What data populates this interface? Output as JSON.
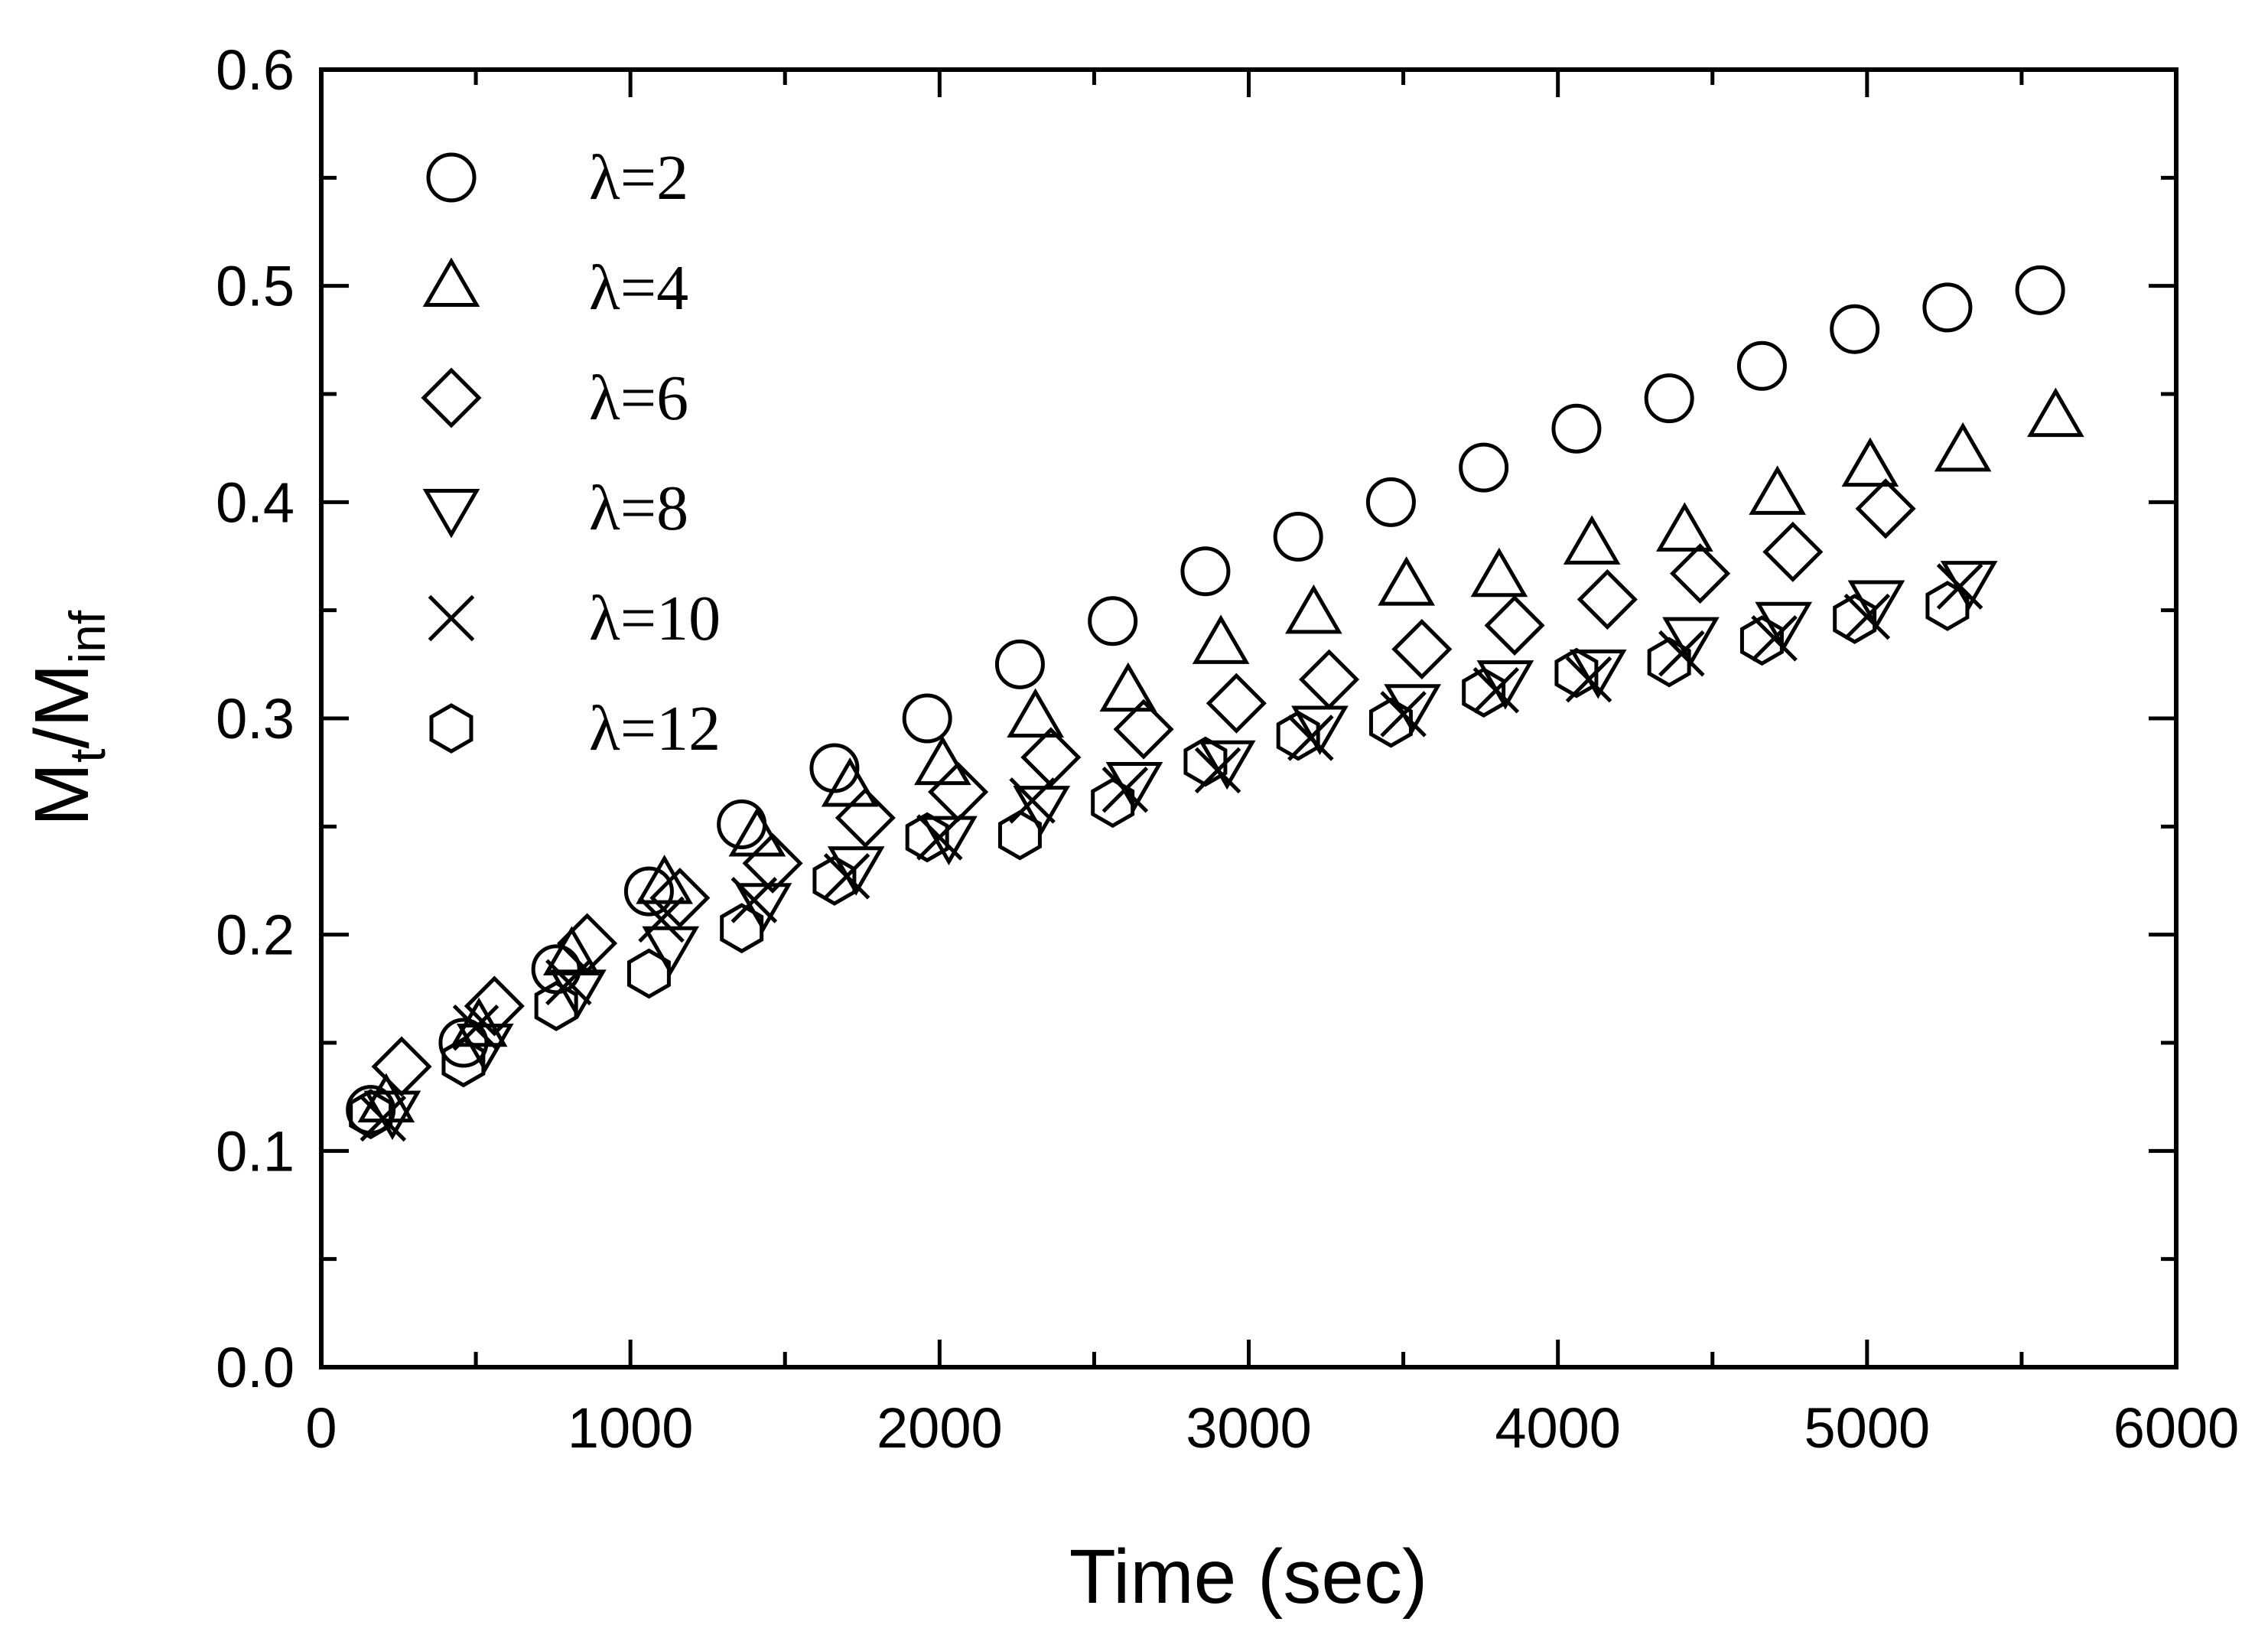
{
  "chart_data": {
    "type": "scatter",
    "title": "",
    "xlabel": "Time (sec)",
    "ylabel_main": "M",
    "ylabel_sub1": "t",
    "ylabel_mid": "/M",
    "ylabel_sub2": "inf",
    "xlim": [
      0,
      6000
    ],
    "ylim": [
      0.0,
      0.6
    ],
    "x_ticks": [
      0,
      1000,
      2000,
      3000,
      4000,
      5000,
      6000
    ],
    "x_tick_labels": [
      "0",
      "1000",
      "2000",
      "3000",
      "4000",
      "5000",
      "6000"
    ],
    "y_ticks": [
      0.0,
      0.1,
      0.2,
      0.3,
      0.4,
      0.5,
      0.6
    ],
    "y_tick_labels": [
      "0.0",
      "0.1",
      "0.2",
      "0.3",
      "0.4",
      "0.5",
      "0.6"
    ],
    "grid": false,
    "legend_position": "top-left",
    "series": [
      {
        "name": "λ=2",
        "marker": "circle",
        "x": [
          160,
          460,
          760,
          1060,
          1360,
          1660,
          1960,
          2260,
          2560,
          2860,
          3160,
          3460,
          3760,
          4060,
          4360,
          4660,
          4960,
          5260,
          5560
        ],
        "y": [
          0.119,
          0.15,
          0.184,
          0.22,
          0.251,
          0.277,
          0.3,
          0.325,
          0.345,
          0.368,
          0.384,
          0.4,
          0.416,
          0.434,
          0.448,
          0.463,
          0.48,
          0.49,
          0.498
        ]
      },
      {
        "name": "λ=4",
        "marker": "triangle-up",
        "x": [
          210,
          510,
          810,
          1110,
          1410,
          1710,
          2010,
          2310,
          2610,
          2910,
          3210,
          3510,
          3810,
          4110,
          4410,
          4710,
          5010,
          5310,
          5610
        ],
        "y": [
          0.122,
          0.157,
          0.19,
          0.223,
          0.245,
          0.268,
          0.278,
          0.3,
          0.312,
          0.334,
          0.348,
          0.361,
          0.365,
          0.38,
          0.386,
          0.403,
          0.416,
          0.423,
          0.439
        ]
      },
      {
        "name": "λ=6",
        "marker": "diamond",
        "x": [
          260,
          560,
          860,
          1160,
          1460,
          1760,
          2060,
          2360,
          2660,
          2960,
          3260,
          3560,
          3860,
          4160,
          4460,
          4760,
          5060
        ],
        "y": [
          0.139,
          0.167,
          0.196,
          0.217,
          0.233,
          0.254,
          0.266,
          0.282,
          0.295,
          0.307,
          0.318,
          0.332,
          0.343,
          0.355,
          0.367,
          0.377,
          0.397
        ]
      },
      {
        "name": "λ=8",
        "marker": "triangle-down",
        "x": [
          230,
          530,
          830,
          1130,
          1430,
          1730,
          2030,
          2330,
          2630,
          2930,
          3230,
          3530,
          3830,
          4130,
          4430,
          4730,
          5030,
          5330
        ],
        "y": [
          0.119,
          0.15,
          0.175,
          0.195,
          0.215,
          0.232,
          0.246,
          0.26,
          0.271,
          0.281,
          0.297,
          0.307,
          0.318,
          0.323,
          0.338,
          0.345,
          0.355,
          0.364
        ]
      },
      {
        "name": "λ=10",
        "marker": "cross",
        "x": [
          200,
          500,
          800,
          1100,
          1400,
          1700,
          2000,
          2300,
          2600,
          2900,
          3200,
          3500,
          3800,
          4100,
          4400,
          4700,
          5000,
          5300
        ],
        "y": [
          0.115,
          0.157,
          0.178,
          0.207,
          0.216,
          0.227,
          0.245,
          0.262,
          0.267,
          0.276,
          0.291,
          0.302,
          0.313,
          0.318,
          0.33,
          0.337,
          0.347,
          0.361
        ]
      },
      {
        "name": "λ=12",
        "marker": "hexagon",
        "x": [
          160,
          460,
          760,
          1060,
          1360,
          1660,
          1960,
          2260,
          2560,
          2860,
          3160,
          3460,
          3760,
          4060,
          4360,
          4660,
          4960,
          5260
        ],
        "y": [
          0.117,
          0.141,
          0.167,
          0.182,
          0.203,
          0.225,
          0.245,
          0.246,
          0.261,
          0.28,
          0.292,
          0.298,
          0.312,
          0.321,
          0.326,
          0.336,
          0.346,
          0.352
        ]
      }
    ]
  }
}
